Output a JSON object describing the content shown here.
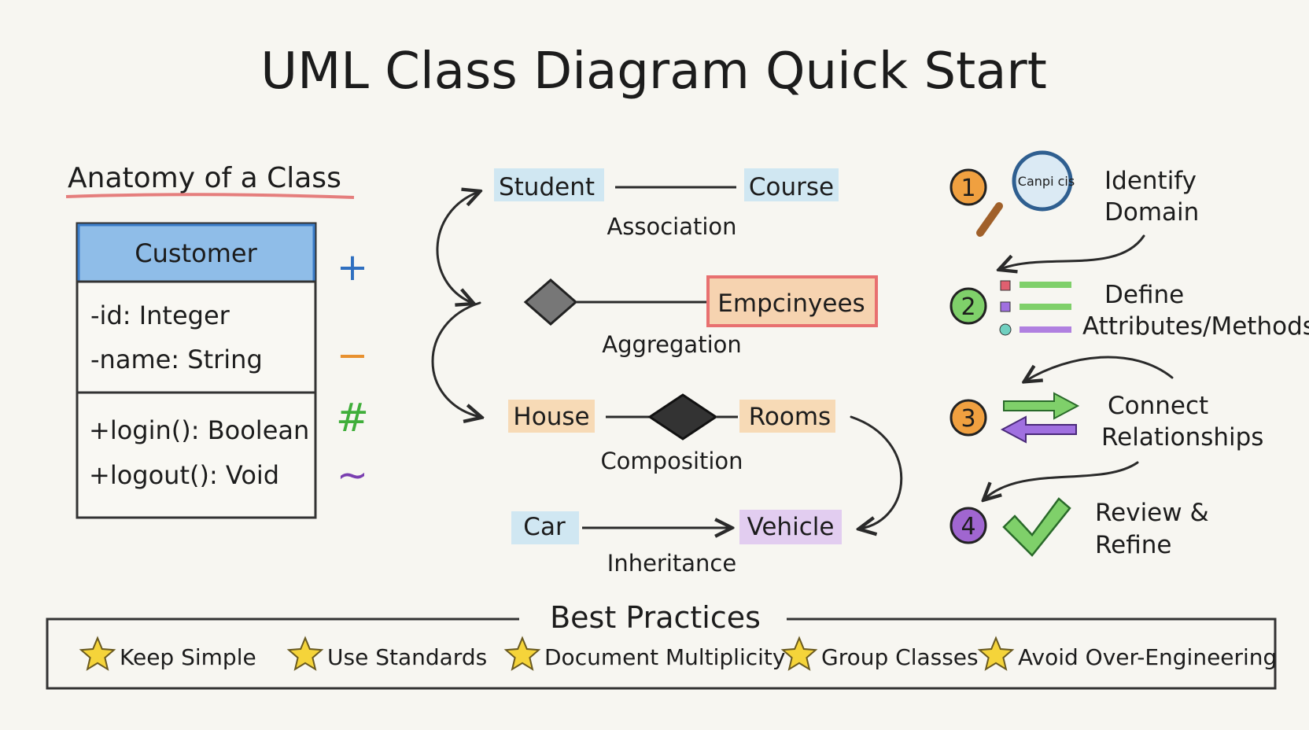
{
  "title": "UML Class Diagram Quick Start",
  "anatomy": {
    "heading": "Anatomy of a Class",
    "class_name": "Customer",
    "attributes": [
      "-id: Integer",
      "-name: String"
    ],
    "methods": [
      "+login(): Boolean",
      "+logout(): Void"
    ],
    "visibility_symbols": [
      {
        "symbol": "+",
        "color": "#2f6fc0"
      },
      {
        "symbol": "−",
        "color": "#e8912f"
      },
      {
        "symbol": "#",
        "color": "#3fae3a"
      },
      {
        "symbol": "~",
        "color": "#7a3fb0"
      }
    ]
  },
  "relationships": [
    {
      "from": "Student",
      "to": "Course",
      "label": "Association"
    },
    {
      "from": "",
      "to": "Empcinyees",
      "label": "Aggregation"
    },
    {
      "from": "House",
      "to": "Rooms",
      "label": "Composition"
    },
    {
      "from": "Car",
      "to": "Vehicle",
      "label": "Inheritance"
    }
  ],
  "steps": [
    {
      "number": "1",
      "lines": [
        "Identify",
        "Domain"
      ],
      "color": "#f0a040",
      "icon": "magnifier-icon",
      "icon_text": "Canpi cis"
    },
    {
      "number": "2",
      "lines": [
        "Define",
        "Attributes/Methods"
      ],
      "color": "#7fd06a",
      "icon": "list-icon"
    },
    {
      "number": "3",
      "lines": [
        "Connect",
        "Relationships"
      ],
      "color": "#f0a040",
      "icon": "arrows-icon"
    },
    {
      "number": "4",
      "lines": [
        "Review &",
        "Refine"
      ],
      "color": "#a066d0",
      "icon": "checkmark-icon"
    }
  ],
  "best_practices": {
    "heading": "Best Practices",
    "items": [
      "Keep Simple",
      "Use Standards",
      "Document Multiplicity",
      "Group Classes",
      "Avoid Over-Engineering"
    ],
    "star_color": "#f5d43a"
  }
}
